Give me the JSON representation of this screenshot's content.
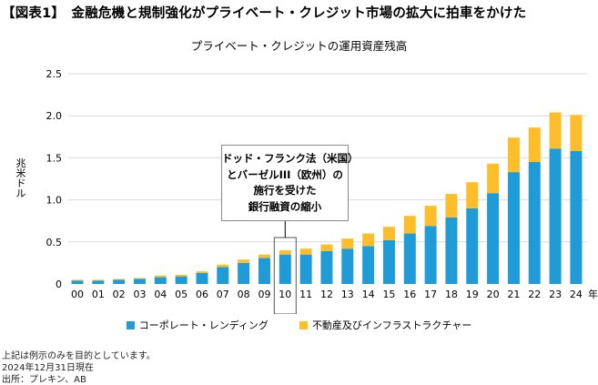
{
  "header": {
    "title": "【図表1】　金融危機と規制強化がプライベート・クレジット市場の拡大に拍車をかけた"
  },
  "colors": {
    "corporate": "#1F9BD7",
    "real_estate": "#FDBE2A",
    "grid": "#D9D9D9",
    "axis": "#BFBFBF"
  },
  "chart_data": {
    "type": "bar",
    "stacked": true,
    "title": "プライベート・クレジットの運用資産残高",
    "xlabel": "年",
    "ylabel": "兆米ドル",
    "ylabel_chars": [
      "兆",
      "米",
      "ド",
      "ル"
    ],
    "ylim": [
      0,
      2.5
    ],
    "yticks": [
      {
        "value": 0,
        "label": "0"
      },
      {
        "value": 0.5,
        "label": "0.5"
      },
      {
        "value": 1.0,
        "label": "1.0"
      },
      {
        "value": 1.5,
        "label": "1.5"
      },
      {
        "value": 2.0,
        "label": "2.0"
      },
      {
        "value": 2.5,
        "label": "2.5"
      }
    ],
    "grid": true,
    "categories": [
      "00",
      "01",
      "02",
      "03",
      "04",
      "05",
      "06",
      "07",
      "08",
      "09",
      "10",
      "11",
      "12",
      "13",
      "14",
      "15",
      "16",
      "17",
      "18",
      "19",
      "20",
      "21",
      "22",
      "23",
      "24"
    ],
    "series": [
      {
        "name": "コーポレート・レンディング",
        "color_key": "corporate",
        "values": [
          0.04,
          0.04,
          0.05,
          0.06,
          0.08,
          0.09,
          0.13,
          0.2,
          0.25,
          0.31,
          0.35,
          0.35,
          0.39,
          0.42,
          0.45,
          0.52,
          0.6,
          0.69,
          0.79,
          0.9,
          1.08,
          1.33,
          1.45,
          1.61,
          1.58
        ]
      },
      {
        "name": "不動産及びインフラストラクチャー",
        "color_key": "real_estate",
        "values": [
          0.01,
          0.01,
          0.01,
          0.01,
          0.02,
          0.02,
          0.02,
          0.03,
          0.04,
          0.04,
          0.05,
          0.07,
          0.08,
          0.12,
          0.15,
          0.16,
          0.21,
          0.24,
          0.28,
          0.31,
          0.35,
          0.41,
          0.41,
          0.43,
          0.43
        ]
      }
    ],
    "legend_position": "bottom",
    "annotation": {
      "target_category": "10",
      "lines": [
        "ドッド・フランク法（米国）",
        "とバーゼルIII（欧州）の",
        "施行を受けた",
        "銀行融資の縮小"
      ]
    }
  },
  "footnotes": {
    "disclaimer": "上記は例示のみを目的としています。",
    "date": "2024年12月31日現在",
    "source": "出所：プレキン、AB"
  }
}
